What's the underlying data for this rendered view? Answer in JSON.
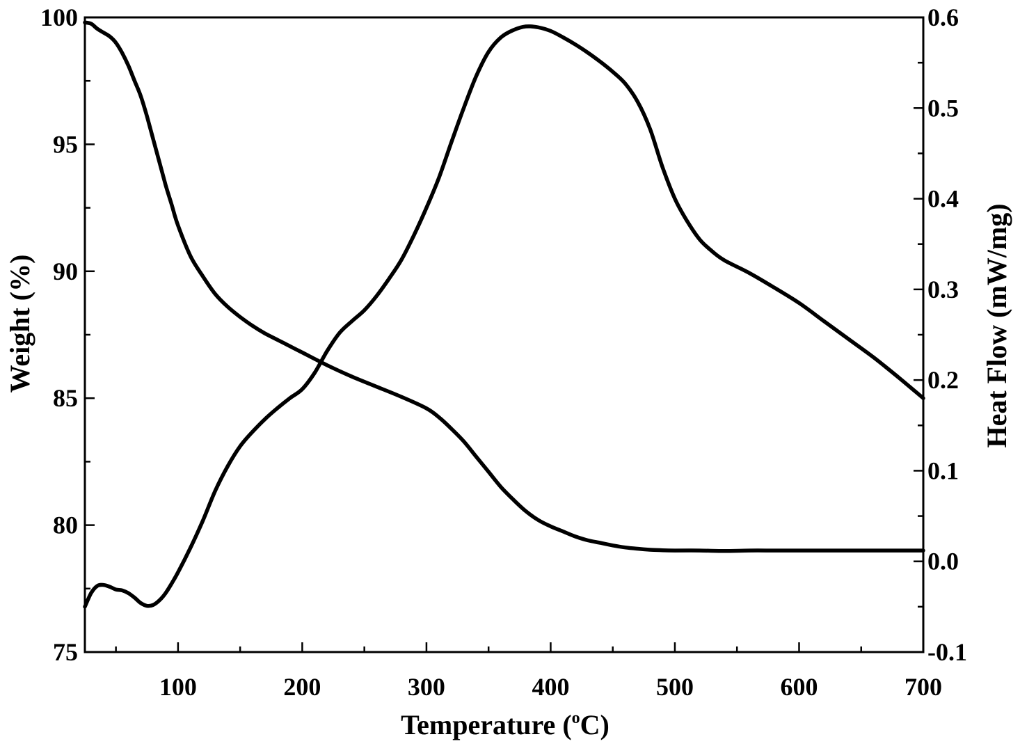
{
  "chart_data": {
    "type": "line",
    "xlabel": {
      "before": "Temperature (",
      "sup": "o",
      "after": "C)"
    },
    "ylabel_left": "Weight (%)",
    "ylabel_right": "Heat Flow (mW/mg)",
    "xlim": [
      25,
      700
    ],
    "ylim_left": [
      75,
      100
    ],
    "ylim_right": [
      -0.1,
      0.6
    ],
    "x_ticks": [
      100,
      200,
      300,
      400,
      500,
      600,
      700
    ],
    "x_tick_labels": [
      "100",
      "200",
      "300",
      "400",
      "500",
      "600",
      "700"
    ],
    "y_left_ticks": [
      75,
      80,
      85,
      90,
      95,
      100
    ],
    "y_left_tick_labels": [
      "75",
      "80",
      "85",
      "90",
      "95",
      "100"
    ],
    "y_right_ticks": [
      -0.1,
      0.0,
      0.1,
      0.2,
      0.3,
      0.4,
      0.5,
      0.6
    ],
    "y_right_tick_labels": [
      "-0.1",
      "0.0",
      "0.1",
      "0.2",
      "0.3",
      "0.4",
      "0.5",
      "0.6"
    ],
    "grid": false,
    "legend": "none",
    "series": [
      {
        "axis": "left",
        "x": [
          25,
          30,
          35,
          40,
          45,
          50,
          55,
          60,
          65,
          70,
          75,
          80,
          85,
          90,
          95,
          100,
          110,
          120,
          130,
          140,
          150,
          160,
          170,
          180,
          190,
          200,
          220,
          240,
          260,
          280,
          300,
          310,
          320,
          330,
          340,
          350,
          360,
          370,
          380,
          390,
          400,
          410,
          420,
          430,
          440,
          450,
          460,
          470,
          480,
          490,
          500,
          520,
          540,
          560,
          580,
          600,
          650,
          700
        ],
        "y": [
          99.8,
          99.75,
          99.55,
          99.4,
          99.25,
          99.0,
          98.6,
          98.1,
          97.5,
          96.9,
          96.1,
          95.2,
          94.3,
          93.4,
          92.6,
          91.8,
          90.6,
          89.8,
          89.1,
          88.6,
          88.2,
          87.85,
          87.55,
          87.3,
          87.05,
          86.8,
          86.3,
          85.85,
          85.45,
          85.05,
          84.6,
          84.25,
          83.8,
          83.3,
          82.7,
          82.1,
          81.5,
          81.0,
          80.55,
          80.2,
          79.95,
          79.75,
          79.55,
          79.4,
          79.3,
          79.2,
          79.12,
          79.07,
          79.03,
          79.01,
          79.0,
          79.0,
          78.98,
          79.0,
          79.0,
          79.0,
          79.0,
          79.0
        ]
      },
      {
        "axis": "right",
        "x": [
          25,
          30,
          35,
          40,
          45,
          50,
          55,
          60,
          65,
          70,
          75,
          80,
          85,
          90,
          95,
          100,
          110,
          120,
          130,
          140,
          150,
          160,
          170,
          180,
          190,
          200,
          210,
          220,
          230,
          240,
          250,
          260,
          270,
          280,
          290,
          300,
          310,
          320,
          330,
          340,
          350,
          360,
          370,
          380,
          390,
          400,
          410,
          420,
          430,
          440,
          450,
          460,
          470,
          480,
          490,
          500,
          510,
          520,
          530,
          540,
          560,
          580,
          600,
          620,
          640,
          660,
          680,
          700
        ],
        "y": [
          -0.05,
          -0.035,
          -0.027,
          -0.026,
          -0.028,
          -0.031,
          -0.032,
          -0.035,
          -0.04,
          -0.046,
          -0.049,
          -0.048,
          -0.043,
          -0.035,
          -0.024,
          -0.012,
          0.015,
          0.045,
          0.078,
          0.105,
          0.127,
          0.143,
          0.157,
          0.169,
          0.18,
          0.19,
          0.208,
          0.232,
          0.252,
          0.265,
          0.277,
          0.293,
          0.312,
          0.333,
          0.36,
          0.39,
          0.423,
          0.462,
          0.5,
          0.535,
          0.562,
          0.578,
          0.586,
          0.59,
          0.589,
          0.585,
          0.578,
          0.57,
          0.561,
          0.551,
          0.54,
          0.527,
          0.507,
          0.477,
          0.435,
          0.4,
          0.375,
          0.355,
          0.342,
          0.332,
          0.318,
          0.302,
          0.285,
          0.265,
          0.245,
          0.225,
          0.203,
          0.18
        ]
      }
    ]
  }
}
